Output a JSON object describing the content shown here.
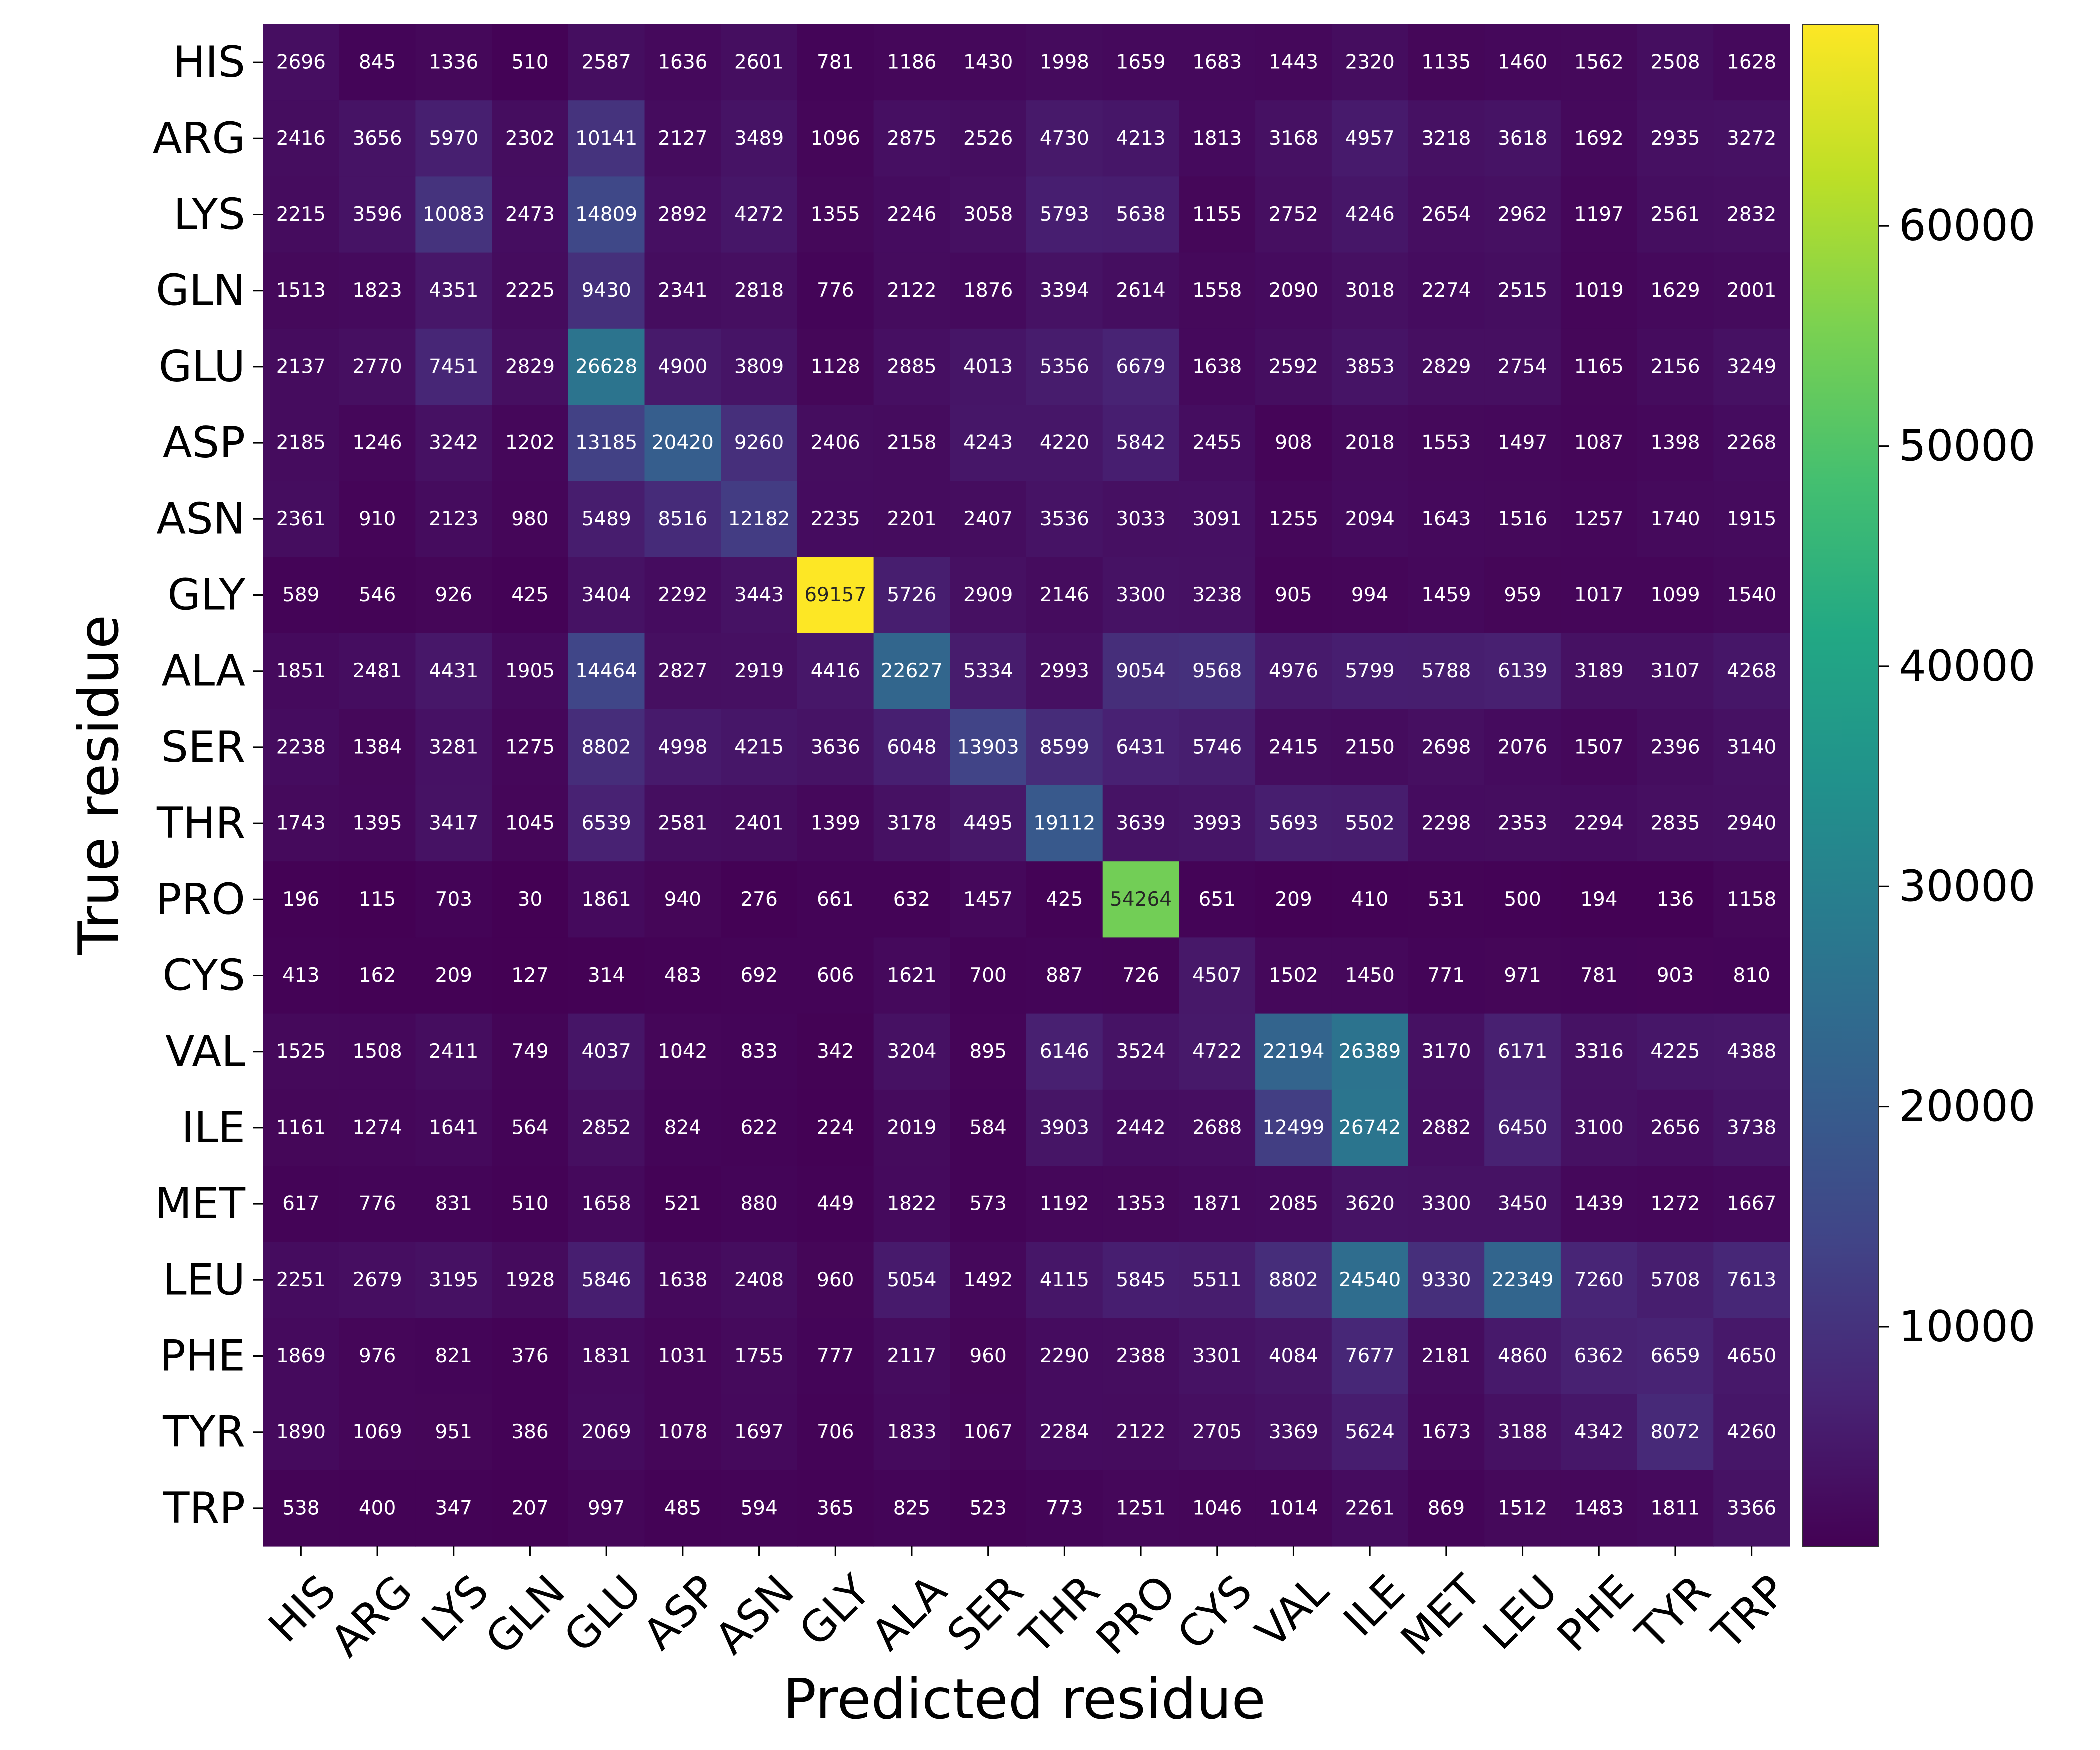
{
  "chart_data": {
    "type": "heatmap",
    "title": "",
    "xlabel": "Predicted residue",
    "ylabel": "True residue",
    "x_categories": [
      "HIS",
      "ARG",
      "LYS",
      "GLN",
      "GLU",
      "ASP",
      "ASN",
      "GLY",
      "ALA",
      "SER",
      "THR",
      "PRO",
      "CYS",
      "VAL",
      "ILE",
      "MET",
      "LEU",
      "PHE",
      "TYR",
      "TRP"
    ],
    "y_categories": [
      "HIS",
      "ARG",
      "LYS",
      "GLN",
      "GLU",
      "ASP",
      "ASN",
      "GLY",
      "ALA",
      "SER",
      "THR",
      "PRO",
      "CYS",
      "VAL",
      "ILE",
      "MET",
      "LEU",
      "PHE",
      "TYR",
      "TRP"
    ],
    "values": [
      [
        2696,
        845,
        1336,
        510,
        2587,
        1636,
        2601,
        781,
        1186,
        1430,
        1998,
        1659,
        1683,
        1443,
        2320,
        1135,
        1460,
        1562,
        2508,
        1628
      ],
      [
        2416,
        3656,
        5970,
        2302,
        10141,
        2127,
        3489,
        1096,
        2875,
        2526,
        4730,
        4213,
        1813,
        3168,
        4957,
        3218,
        3618,
        1692,
        2935,
        3272
      ],
      [
        2215,
        3596,
        10083,
        2473,
        14809,
        2892,
        4272,
        1355,
        2246,
        3058,
        5793,
        5638,
        1155,
        2752,
        4246,
        2654,
        2962,
        1197,
        2561,
        2832
      ],
      [
        1513,
        1823,
        4351,
        2225,
        9430,
        2341,
        2818,
        776,
        2122,
        1876,
        3394,
        2614,
        1558,
        2090,
        3018,
        2274,
        2515,
        1019,
        1629,
        2001
      ],
      [
        2137,
        2770,
        7451,
        2829,
        26628,
        4900,
        3809,
        1128,
        2885,
        4013,
        5356,
        6679,
        1638,
        2592,
        3853,
        2829,
        2754,
        1165,
        2156,
        3249
      ],
      [
        2185,
        1246,
        3242,
        1202,
        13185,
        20420,
        9260,
        2406,
        2158,
        4243,
        4220,
        5842,
        2455,
        908,
        2018,
        1553,
        1497,
        1087,
        1398,
        2268
      ],
      [
        2361,
        910,
        2123,
        980,
        5489,
        8516,
        12182,
        2235,
        2201,
        2407,
        3536,
        3033,
        3091,
        1255,
        2094,
        1643,
        1516,
        1257,
        1740,
        1915
      ],
      [
        589,
        546,
        926,
        425,
        3404,
        2292,
        3443,
        69157,
        5726,
        2909,
        2146,
        3300,
        3238,
        905,
        994,
        1459,
        959,
        1017,
        1099,
        1540
      ],
      [
        1851,
        2481,
        4431,
        1905,
        14464,
        2827,
        2919,
        4416,
        22627,
        5334,
        2993,
        9054,
        9568,
        4976,
        5799,
        5788,
        6139,
        3189,
        3107,
        4268
      ],
      [
        2238,
        1384,
        3281,
        1275,
        8802,
        4998,
        4215,
        3636,
        6048,
        13903,
        8599,
        6431,
        5746,
        2415,
        2150,
        2698,
        2076,
        1507,
        2396,
        3140
      ],
      [
        1743,
        1395,
        3417,
        1045,
        6539,
        2581,
        2401,
        1399,
        3178,
        4495,
        19112,
        3639,
        3993,
        5693,
        5502,
        2298,
        2353,
        2294,
        2835,
        2940
      ],
      [
        196,
        115,
        703,
        30,
        1861,
        940,
        276,
        661,
        632,
        1457,
        425,
        54264,
        651,
        209,
        410,
        531,
        500,
        194,
        136,
        1158
      ],
      [
        413,
        162,
        209,
        127,
        314,
        483,
        692,
        606,
        1621,
        700,
        887,
        726,
        4507,
        1502,
        1450,
        771,
        971,
        781,
        903,
        810
      ],
      [
        1525,
        1508,
        2411,
        749,
        4037,
        1042,
        833,
        342,
        3204,
        895,
        6146,
        3524,
        4722,
        22194,
        26389,
        3170,
        6171,
        3316,
        4225,
        4388
      ],
      [
        1161,
        1274,
        1641,
        564,
        2852,
        824,
        622,
        224,
        2019,
        584,
        3903,
        2442,
        2688,
        12499,
        26742,
        2882,
        6450,
        3100,
        2656,
        3738
      ],
      [
        617,
        776,
        831,
        510,
        1658,
        521,
        880,
        449,
        1822,
        573,
        1192,
        1353,
        1871,
        2085,
        3620,
        3300,
        3450,
        1439,
        1272,
        1667
      ],
      [
        2251,
        2679,
        3195,
        1928,
        5846,
        1638,
        2408,
        960,
        5054,
        1492,
        4115,
        5845,
        5511,
        8802,
        24540,
        9330,
        22349,
        7260,
        5708,
        7613
      ],
      [
        1869,
        976,
        821,
        376,
        1831,
        1031,
        1755,
        777,
        2117,
        960,
        2290,
        2388,
        3301,
        4084,
        7677,
        2181,
        4860,
        6362,
        6659,
        4650
      ],
      [
        1890,
        1069,
        951,
        386,
        2069,
        1078,
        1697,
        706,
        1833,
        1067,
        2284,
        2122,
        2705,
        3369,
        5624,
        1673,
        3188,
        4342,
        8072,
        4260
      ],
      [
        538,
        400,
        347,
        207,
        997,
        485,
        594,
        365,
        825,
        523,
        773,
        1251,
        1046,
        1014,
        2261,
        869,
        1512,
        1483,
        1811,
        3366
      ]
    ],
    "colorbar": {
      "colormap": "viridis",
      "min": 30,
      "max": 69157,
      "ticks": [
        10000,
        20000,
        30000,
        40000,
        50000,
        60000
      ],
      "tick_labels": [
        "10000",
        "20000",
        "30000",
        "40000",
        "50000",
        "60000"
      ]
    },
    "grid": false,
    "legend": "none",
    "annotated": true
  }
}
